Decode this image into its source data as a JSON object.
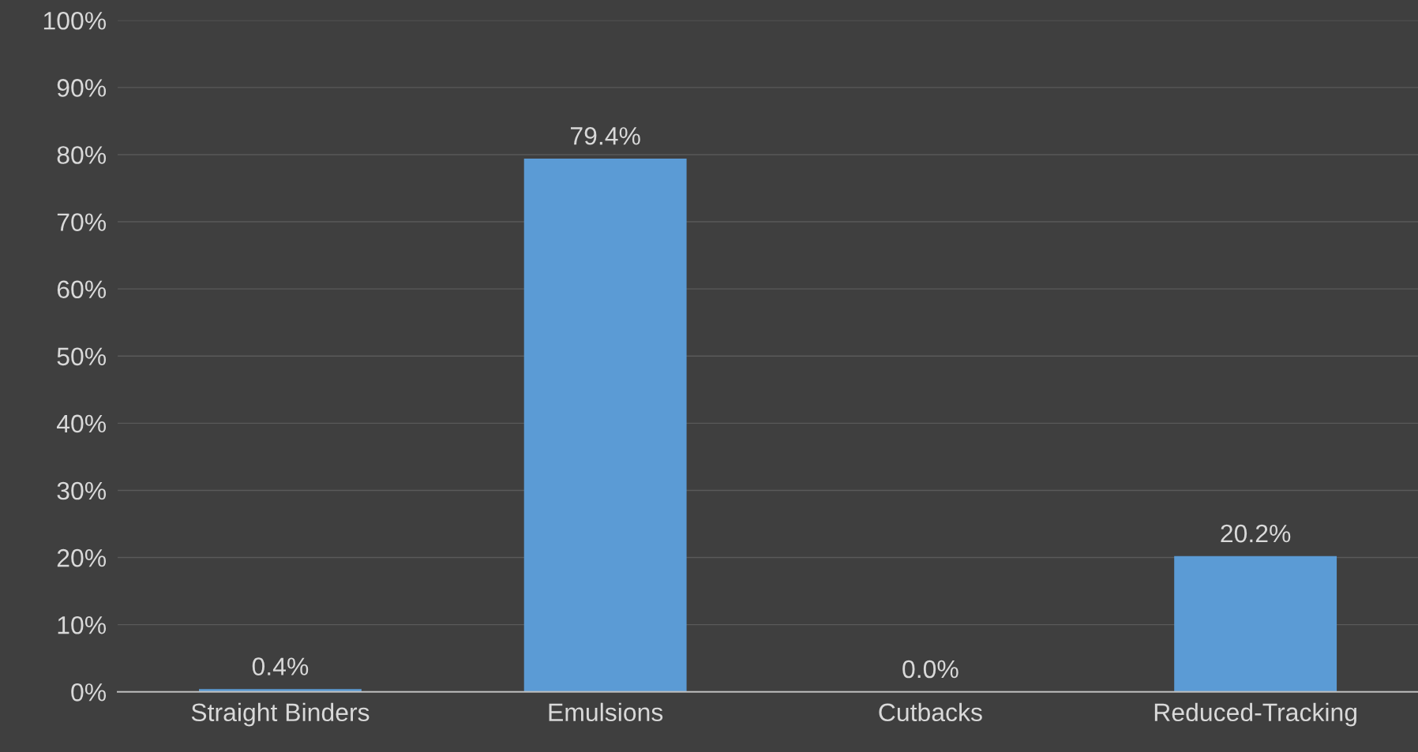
{
  "chart_data": {
    "type": "bar",
    "categories": [
      "Straight Binders",
      "Emulsions",
      "Cutbacks",
      "Reduced-Tracking"
    ],
    "values": [
      0.4,
      79.4,
      0.0,
      20.2
    ],
    "value_labels": [
      "0.4%",
      "79.4%",
      "0.0%",
      "20.2%"
    ],
    "color": "#5b9bd5",
    "ylim": [
      0,
      100
    ],
    "yticks": [
      {
        "value": 0,
        "label": "0%"
      },
      {
        "value": 10,
        "label": "10%"
      },
      {
        "value": 20,
        "label": "20%"
      },
      {
        "value": 30,
        "label": "30%"
      },
      {
        "value": 40,
        "label": "40%"
      },
      {
        "value": 50,
        "label": "50%"
      },
      {
        "value": 60,
        "label": "60%"
      },
      {
        "value": 70,
        "label": "70%"
      },
      {
        "value": 80,
        "label": "80%"
      },
      {
        "value": 90,
        "label": "90%"
      },
      {
        "value": 100,
        "label": "100%"
      }
    ],
    "grid": "y"
  }
}
